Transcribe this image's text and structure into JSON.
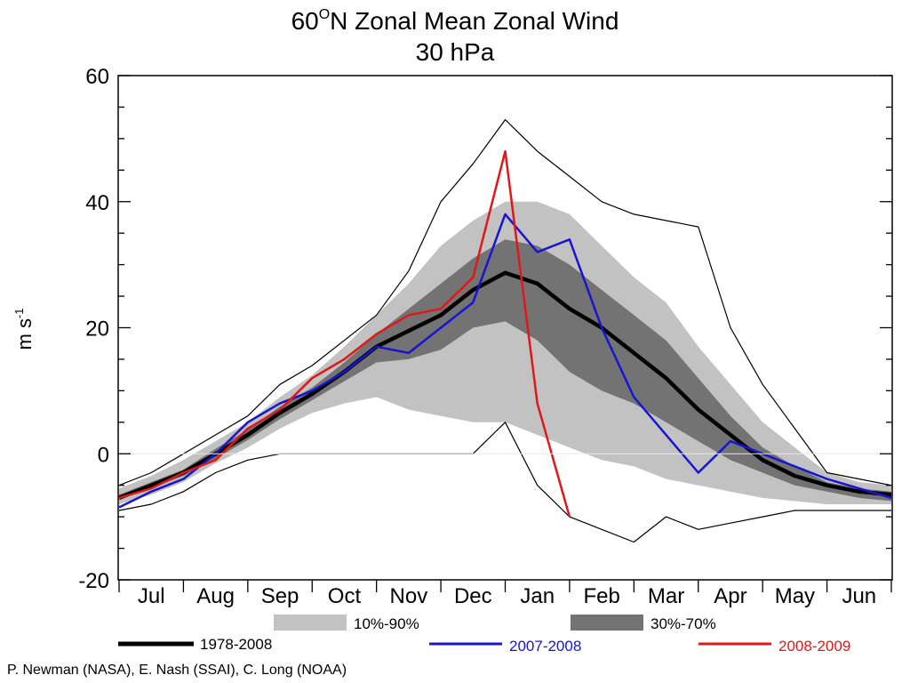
{
  "chart_data": {
    "type": "line",
    "title_line1_prefix": "60",
    "title_line1_sup": "O",
    "title_line1_suffix": "N Zonal Mean Zonal Wind",
    "title_line2": "30 hPa",
    "ylabel": "m s",
    "ylabel_sup": "-1",
    "ylim": [
      -20,
      60
    ],
    "y_ticks": [
      -20,
      0,
      20,
      40,
      60
    ],
    "x_month_labels": [
      "Jul",
      "Aug",
      "Sep",
      "Oct",
      "Nov",
      "Dec",
      "Jan",
      "Feb",
      "Mar",
      "Apr",
      "May",
      "Jun"
    ],
    "zero_line": true,
    "legend": {
      "band_10_90": "10%-90%",
      "band_30_70": "30%-70%",
      "mean_label": "1978-2008",
      "s0708_label": "2007-2008",
      "s0809_label": "2008-2009"
    },
    "colors": {
      "band_10_90": "#c2c2c2",
      "band_30_70": "#737373",
      "mean": "#000000",
      "s0708": "#1515d2",
      "s0809": "#e01818",
      "minmax": "#000000"
    },
    "x_month_index": [
      0,
      0.5,
      1,
      1.5,
      2,
      2.5,
      3,
      3.5,
      4,
      4.5,
      5,
      5.5,
      6,
      6.5,
      7,
      7.5,
      8,
      8.5,
      9,
      9.5,
      10,
      10.5,
      11,
      11.5,
      12
    ],
    "mean": [
      -7,
      -5,
      -3,
      0,
      3,
      6.5,
      9.5,
      13,
      17,
      19.5,
      22,
      26,
      28.7,
      27,
      23,
      20,
      16,
      12,
      7,
      3,
      -1,
      -3.5,
      -5,
      -6,
      -6.5
    ],
    "p10": [
      -8,
      -6.5,
      -4.5,
      -1.5,
      1,
      4,
      6.5,
      8,
      9,
      7,
      6,
      5,
      5,
      3,
      1,
      -1,
      -2,
      -4,
      -5,
      -6,
      -7,
      -7.5,
      -8,
      -8,
      -8
    ],
    "p90": [
      -5.5,
      -3.5,
      -1,
      2,
      5,
      9,
      12.5,
      17,
      22,
      27,
      33,
      37,
      40,
      40,
      38,
      33,
      28,
      24,
      17,
      11,
      5,
      1,
      -3,
      -4.5,
      -5
    ],
    "p30": [
      -7,
      -5.5,
      -3.5,
      -0.8,
      2.2,
      5.5,
      8.5,
      11.5,
      14.5,
      15,
      16.5,
      20,
      21,
      18,
      13,
      10,
      8,
      5,
      2,
      -1,
      -3,
      -5,
      -6,
      -7,
      -7.5
    ],
    "p70": [
      -6.5,
      -4.5,
      -2.5,
      0.8,
      3.8,
      7.5,
      10.5,
      14.5,
      19,
      23,
      27,
      31,
      34,
      33,
      30,
      26,
      22,
      18,
      12,
      6,
      1,
      -2,
      -4.5,
      -5.5,
      -6
    ],
    "max": [
      -5,
      -3,
      0,
      3,
      6,
      11,
      14,
      18,
      22,
      29,
      40,
      46,
      53,
      48,
      44,
      40,
      38,
      37,
      36,
      20,
      11,
      4,
      -3,
      -4,
      -5
    ],
    "min": [
      -9,
      -8,
      -6,
      -3,
      -1,
      0,
      0,
      0,
      0,
      0,
      0,
      0,
      5,
      -5,
      -10,
      -12,
      -14,
      -10,
      -12,
      -11,
      -10,
      -9,
      -9,
      -9,
      -9
    ],
    "s0708": [
      -8.5,
      -6,
      -4,
      0,
      5,
      8,
      10,
      13,
      17,
      16,
      20,
      24,
      38,
      32,
      34,
      20,
      9,
      3,
      -3,
      2,
      0,
      -2,
      -4,
      -5.5,
      -7
    ],
    "s0809": [
      -7,
      -5.5,
      -3,
      -1,
      4,
      7,
      12,
      15,
      19,
      22,
      23,
      28,
      48,
      8,
      -10
    ]
  }
}
